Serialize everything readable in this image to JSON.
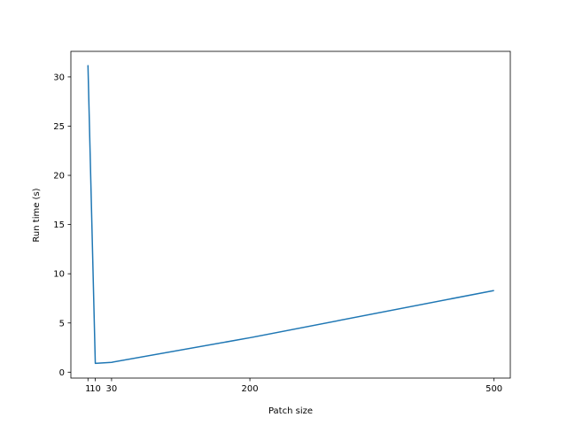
{
  "chart_data": {
    "type": "line",
    "title": "",
    "xlabel": "Patch size",
    "ylabel": "Run time (s)",
    "xlim": [
      -20,
      520
    ],
    "ylim": [
      -0.6,
      32.6
    ],
    "xticks": [
      1,
      10,
      30,
      200,
      500
    ],
    "xtick_labels": [
      "1",
      "10",
      "30",
      "200",
      "500"
    ],
    "yticks": [
      0,
      5,
      10,
      15,
      20,
      25,
      30
    ],
    "ytick_labels": [
      "0",
      "5",
      "10",
      "15",
      "20",
      "25",
      "30"
    ],
    "grid": false,
    "legend": "none",
    "series": [
      {
        "color": "#1f77b4",
        "x": [
          1,
          10,
          30,
          200,
          500
        ],
        "y": [
          31.2,
          0.9,
          1.0,
          3.5,
          8.3
        ]
      }
    ]
  }
}
